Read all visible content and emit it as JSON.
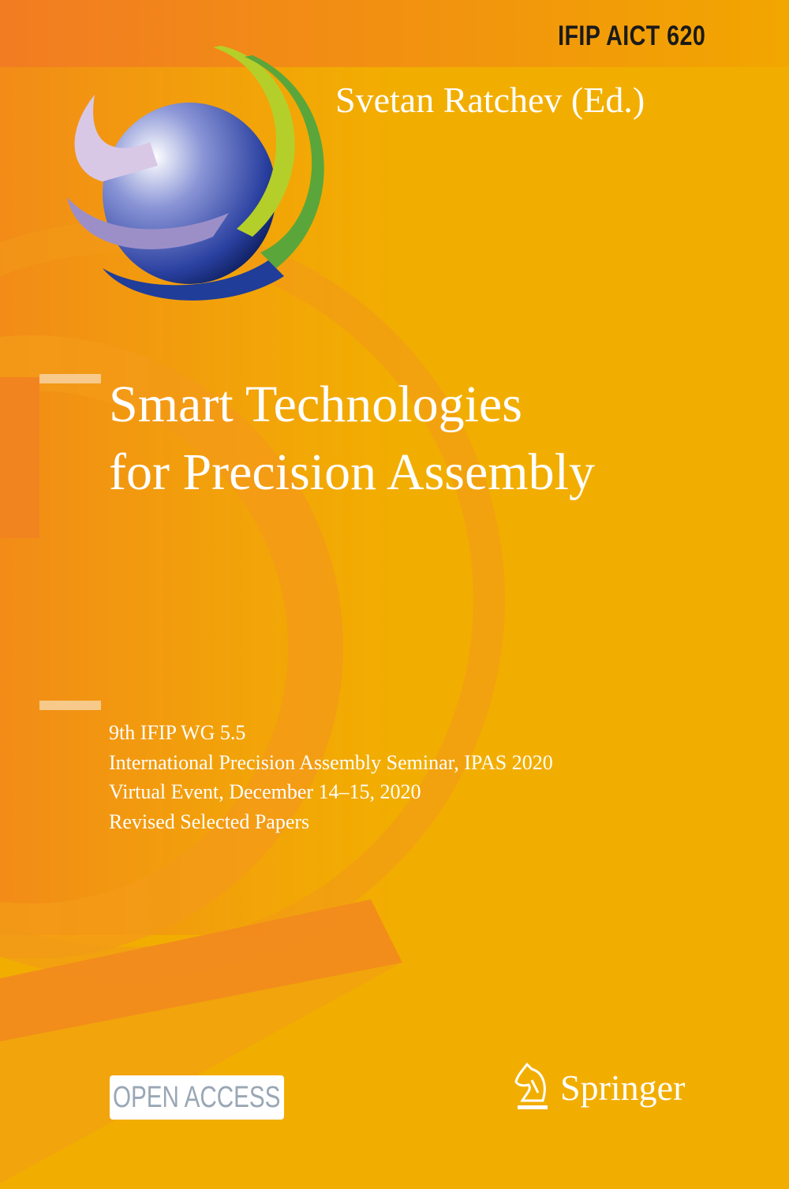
{
  "cover": {
    "series": "IFIP AICT 620",
    "editor": "Svetan Ratchev (Ed.)",
    "title_lines": [
      "Smart Technologies",
      "for Precision Assembly"
    ],
    "subtitle_lines": [
      "9th IFIP WG 5.5",
      "International Precision Assembly Seminar, IPAS 2020",
      "Virtual Event, December 14–15, 2020",
      "Revised Selected Papers"
    ],
    "open_access": "OPEN ACCESS",
    "publisher": "Springer",
    "logo_icon": "ifip-globe-logo",
    "publisher_icon": "springer-horse-logo"
  },
  "colors": {
    "background": "#f2ae00",
    "orange": "#f28a1e",
    "text": "#ffffff",
    "series_text": "#1a1a1a"
  }
}
